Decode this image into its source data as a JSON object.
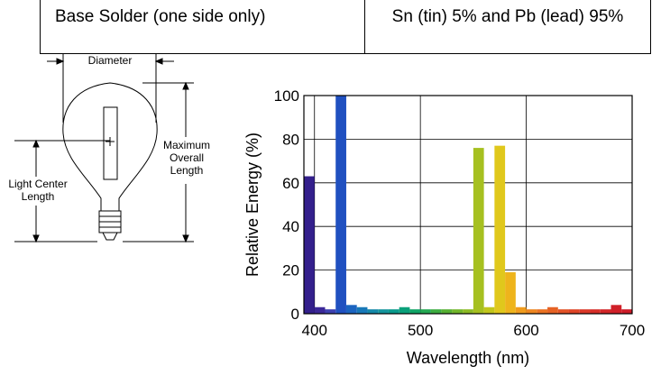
{
  "spec_table": {
    "base_solder_label": "Base Solder (one side only)",
    "base_solder_value": "Sn (tin) 5% and Pb (lead) 95%"
  },
  "lamp_diagram": {
    "diameter_label": "Diameter",
    "max_length_label_1": "Maximum",
    "max_length_label_2": "Overall",
    "max_length_label_3": "Length",
    "lcl_label_1": "Light Center",
    "lcl_label_2": "Length"
  },
  "chart_data": {
    "type": "bar",
    "title": "",
    "xlabel": "Wavelength (nm)",
    "ylabel": "Relative Energy (%)",
    "xlim": [
      390,
      700
    ],
    "ylim": [
      0,
      100
    ],
    "xticks": [
      400,
      500,
      600,
      700
    ],
    "yticks": [
      0,
      20,
      40,
      60,
      80,
      100
    ],
    "grid": true,
    "bin_width_nm": 10,
    "x": [
      390,
      400,
      410,
      420,
      430,
      440,
      450,
      460,
      470,
      480,
      490,
      500,
      510,
      520,
      530,
      540,
      550,
      560,
      570,
      580,
      590,
      600,
      610,
      620,
      630,
      640,
      650,
      660,
      670,
      680,
      690
    ],
    "values": [
      63,
      3,
      2,
      100,
      4,
      3,
      2,
      2,
      2,
      3,
      2,
      2,
      2,
      2,
      2,
      2,
      76,
      3,
      77,
      19,
      3,
      2,
      2,
      3,
      2,
      2,
      2,
      2,
      2,
      4,
      2
    ],
    "colors": [
      "#34208c",
      "#3b2898",
      "#3d40b0",
      "#2050c0",
      "#1c64c0",
      "#1878b8",
      "#1488a8",
      "#14949c",
      "#0a9a8c",
      "#0aa07a",
      "#10a466",
      "#24a852",
      "#3cac40",
      "#56b032",
      "#72b62a",
      "#8cba24",
      "#a6c020",
      "#c2c61c",
      "#e0c81c",
      "#eeb41c",
      "#f09c1e",
      "#ee8620",
      "#ea7222",
      "#e66224",
      "#e25226",
      "#de4426",
      "#da3828",
      "#d62e28",
      "#d22628",
      "#d02028",
      "#cc1c28"
    ]
  }
}
